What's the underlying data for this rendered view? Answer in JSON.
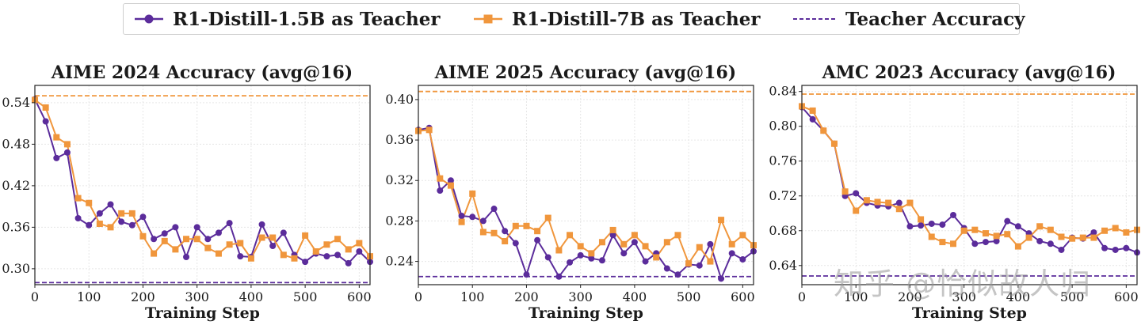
{
  "legend": {
    "series1": "R1-Distill-1.5B as Teacher",
    "series2": "R1-Distill-7B as Teacher",
    "teacher": "Teacher Accuracy"
  },
  "colors": {
    "purple": "#5b2c9b",
    "orange": "#f0963c"
  },
  "watermark": "知乎 @恰似故人归",
  "chart_data": [
    {
      "type": "line",
      "title": "AIME 2024 Accuracy (avg@16)",
      "xlabel": "Training Step",
      "xlim": [
        0,
        620
      ],
      "ylim": [
        0.277,
        0.565
      ],
      "xticks": [
        0,
        100,
        200,
        300,
        400,
        500,
        600
      ],
      "yticks": [
        0.3,
        0.36,
        0.42,
        0.48,
        0.54
      ],
      "x": [
        0,
        20,
        40,
        60,
        80,
        100,
        120,
        140,
        160,
        180,
        200,
        220,
        240,
        260,
        280,
        300,
        320,
        340,
        360,
        380,
        400,
        420,
        440,
        460,
        480,
        500,
        520,
        540,
        560,
        580,
        600,
        620
      ],
      "series": [
        {
          "name": "R1-Distill-1.5B as Teacher",
          "color": "purple",
          "marker": "circle",
          "values": [
            0.545,
            0.513,
            0.46,
            0.468,
            0.373,
            0.363,
            0.38,
            0.393,
            0.368,
            0.363,
            0.375,
            0.343,
            0.351,
            0.36,
            0.317,
            0.36,
            0.343,
            0.352,
            0.366,
            0.318,
            0.317,
            0.364,
            0.333,
            0.352,
            0.32,
            0.31,
            0.322,
            0.318,
            0.32,
            0.308,
            0.325,
            0.31
          ]
        },
        {
          "name": "R1-Distill-7B as Teacher",
          "color": "orange",
          "marker": "square",
          "values": [
            0.544,
            0.533,
            0.49,
            0.48,
            0.402,
            0.395,
            0.365,
            0.36,
            0.38,
            0.38,
            0.347,
            0.322,
            0.34,
            0.328,
            0.343,
            0.343,
            0.33,
            0.322,
            0.335,
            0.337,
            0.315,
            0.345,
            0.345,
            0.32,
            0.315,
            0.348,
            0.325,
            0.335,
            0.343,
            0.328,
            0.337,
            0.318
          ]
        }
      ],
      "teacher": {
        "purple": 0.28,
        "orange": 0.55
      }
    },
    {
      "type": "line",
      "title": "AIME 2025 Accuracy (avg@16)",
      "xlabel": "Training Step",
      "xlim": [
        0,
        620
      ],
      "ylim": [
        0.217,
        0.414
      ],
      "xticks": [
        0,
        100,
        200,
        300,
        400,
        500,
        600
      ],
      "yticks": [
        0.24,
        0.28,
        0.32,
        0.36,
        0.4
      ],
      "x": [
        0,
        20,
        40,
        60,
        80,
        100,
        120,
        140,
        160,
        180,
        200,
        220,
        240,
        260,
        280,
        300,
        320,
        340,
        360,
        380,
        400,
        420,
        440,
        460,
        480,
        500,
        520,
        540,
        560,
        580,
        600,
        620
      ],
      "series": [
        {
          "name": "R1-Distill-1.5B as Teacher",
          "color": "purple",
          "marker": "circle",
          "values": [
            0.37,
            0.372,
            0.31,
            0.32,
            0.285,
            0.284,
            0.28,
            0.292,
            0.27,
            0.258,
            0.227,
            0.261,
            0.244,
            0.225,
            0.239,
            0.246,
            0.243,
            0.241,
            0.266,
            0.248,
            0.259,
            0.24,
            0.248,
            0.233,
            0.227,
            0.237,
            0.236,
            0.257,
            0.223,
            0.248,
            0.242,
            0.25
          ]
        },
        {
          "name": "R1-Distill-7B as Teacher",
          "color": "orange",
          "marker": "square",
          "values": [
            0.369,
            0.37,
            0.322,
            0.315,
            0.279,
            0.307,
            0.269,
            0.268,
            0.26,
            0.275,
            0.275,
            0.27,
            0.283,
            0.251,
            0.266,
            0.255,
            0.248,
            0.259,
            0.271,
            0.257,
            0.266,
            0.255,
            0.244,
            0.259,
            0.266,
            0.238,
            0.254,
            0.24,
            0.281,
            0.257,
            0.266,
            0.256
          ]
        }
      ],
      "teacher": {
        "purple": 0.225,
        "orange": 0.408
      }
    },
    {
      "type": "line",
      "title": "AMC 2023 Accuracy (avg@16)",
      "xlabel": "Training Step",
      "xlim": [
        0,
        620
      ],
      "ylim": [
        0.618,
        0.847
      ],
      "xticks": [
        0,
        100,
        200,
        300,
        400,
        500,
        600
      ],
      "yticks": [
        0.64,
        0.68,
        0.72,
        0.76,
        0.8,
        0.84
      ],
      "x": [
        0,
        20,
        40,
        60,
        80,
        100,
        120,
        140,
        160,
        180,
        200,
        220,
        240,
        260,
        280,
        300,
        320,
        340,
        360,
        380,
        400,
        420,
        440,
        460,
        480,
        500,
        520,
        540,
        560,
        580,
        600,
        620
      ],
      "series": [
        {
          "name": "R1-Distill-1.5B as Teacher",
          "color": "purple",
          "marker": "circle",
          "values": [
            0.822,
            0.808,
            0.795,
            0.78,
            0.72,
            0.723,
            0.712,
            0.709,
            0.708,
            0.712,
            0.685,
            0.686,
            0.688,
            0.687,
            0.698,
            0.683,
            0.665,
            0.667,
            0.668,
            0.691,
            0.685,
            0.677,
            0.668,
            0.665,
            0.658,
            0.672,
            0.671,
            0.678,
            0.66,
            0.658,
            0.66,
            0.655
          ]
        },
        {
          "name": "R1-Distill-7B as Teacher",
          "color": "orange",
          "marker": "square",
          "values": [
            0.823,
            0.818,
            0.795,
            0.78,
            0.725,
            0.703,
            0.715,
            0.713,
            0.712,
            0.705,
            0.712,
            0.693,
            0.673,
            0.667,
            0.665,
            0.68,
            0.681,
            0.677,
            0.674,
            0.676,
            0.662,
            0.672,
            0.685,
            0.681,
            0.673,
            0.671,
            0.672,
            0.672,
            0.68,
            0.683,
            0.678,
            0.681
          ]
        }
      ],
      "teacher": {
        "purple": 0.628,
        "orange": 0.837
      }
    }
  ]
}
